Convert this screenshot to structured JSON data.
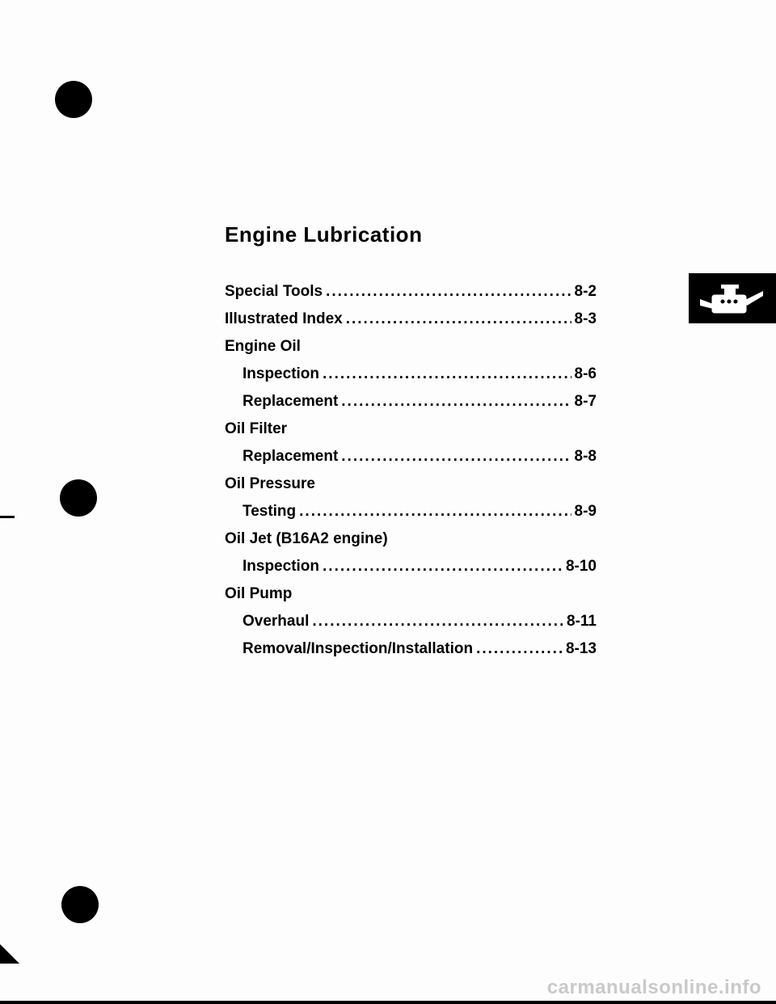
{
  "title": "Engine Lubrication",
  "toc": [
    {
      "label": "Special Tools",
      "page": "8-2",
      "indent": false,
      "dots": true
    },
    {
      "label": "Illustrated Index",
      "page": "8-3",
      "indent": false,
      "dots": true
    },
    {
      "label": "Engine Oil",
      "page": "",
      "indent": false,
      "dots": false
    },
    {
      "label": "Inspection",
      "page": "8-6",
      "indent": true,
      "dots": true
    },
    {
      "label": "Replacement",
      "page": "8-7",
      "indent": true,
      "dots": true
    },
    {
      "label": "Oil Filter",
      "page": "",
      "indent": false,
      "dots": false
    },
    {
      "label": "Replacement",
      "page": "8-8",
      "indent": true,
      "dots": true
    },
    {
      "label": "Oil Pressure",
      "page": "",
      "indent": false,
      "dots": false
    },
    {
      "label": "Testing",
      "page": "8-9",
      "indent": true,
      "dots": true
    },
    {
      "label": "Oil Jet (B16A2 engine)",
      "page": "",
      "indent": false,
      "dots": false
    },
    {
      "label": "Inspection",
      "page": "8-10",
      "indent": true,
      "dots": true
    },
    {
      "label": "Oil Pump",
      "page": "",
      "indent": false,
      "dots": false
    },
    {
      "label": "Overhaul",
      "page": "8-11",
      "indent": true,
      "dots": true
    },
    {
      "label": "Removal/Inspection/Installation",
      "page": "8-13",
      "indent": true,
      "dots": true
    }
  ],
  "watermark": "carmanualsonline.info"
}
